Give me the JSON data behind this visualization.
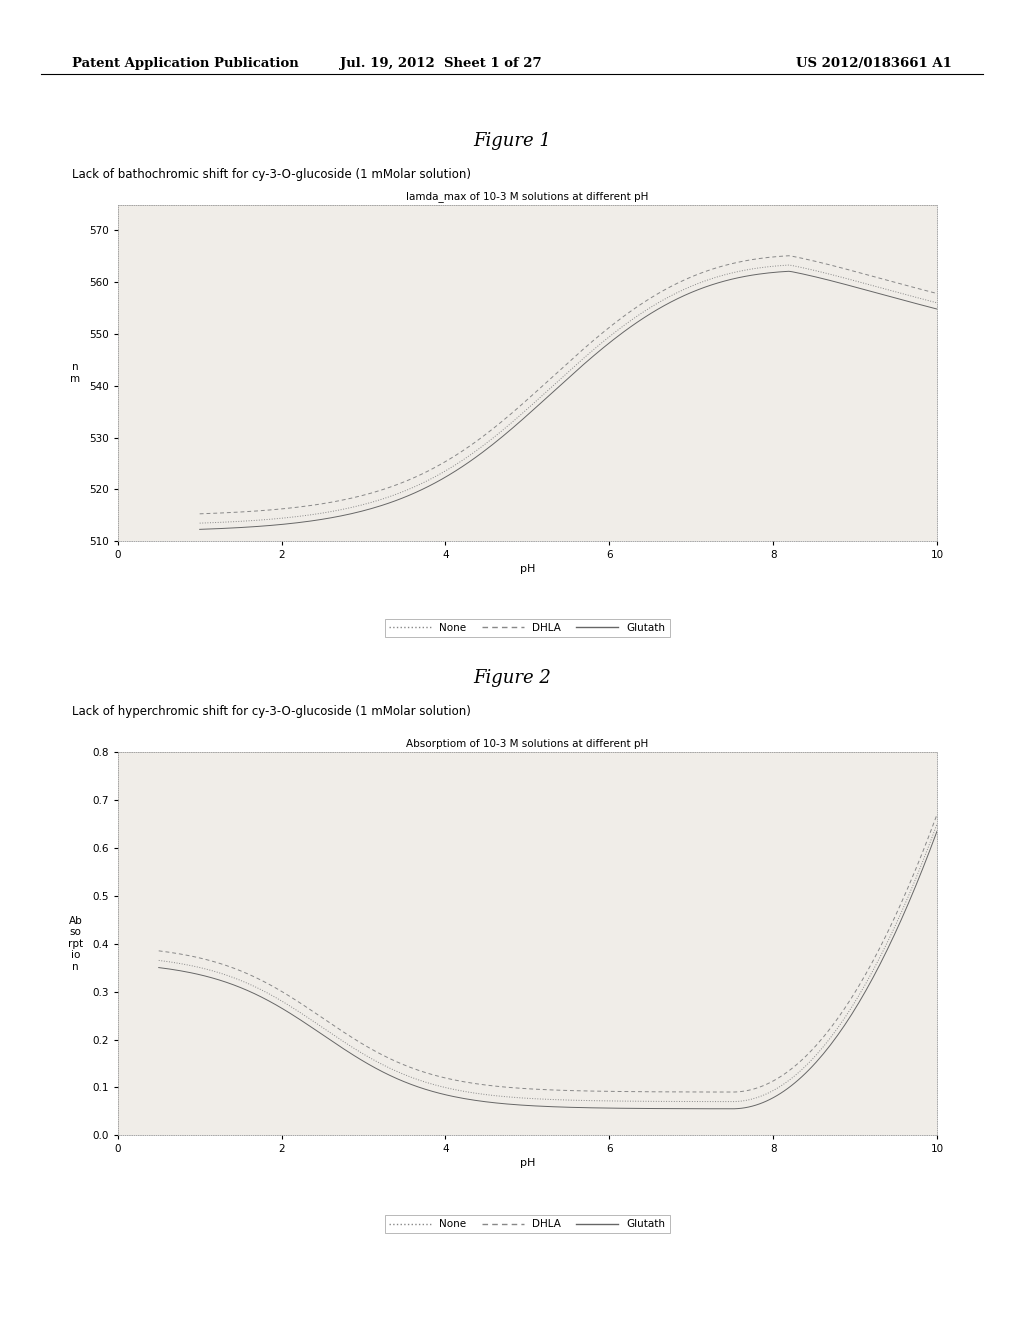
{
  "header_left": "Patent Application Publication",
  "header_mid": "Jul. 19, 2012  Sheet 1 of 27",
  "header_right": "US 2012/0183661 A1",
  "fig1_title": "Figure 1",
  "fig1_subtitle": "Lack of bathochromic shift for cy-3-O-glucoside (1 mMolar solution)",
  "fig1_chart_title": "lamda_max of 10-3 M solutions at different pH",
  "fig1_xlabel": "pH",
  "fig1_ylabel": "n\nm",
  "fig1_xlim": [
    0,
    10
  ],
  "fig1_ylim": [
    510,
    575
  ],
  "fig1_yticks": [
    510,
    520,
    530,
    540,
    550,
    560,
    570
  ],
  "fig1_xticks": [
    0,
    2,
    4,
    6,
    8,
    10
  ],
  "fig2_title": "Figure 2",
  "fig2_subtitle": "Lack of hyperchromic shift for cy-3-O-glucoside (1 mMolar solution)",
  "fig2_chart_title": "Absorptiom of 10-3 M solutions at different pH",
  "fig2_xlabel": "pH",
  "fig2_ylabel": "Ab\nso\nrpt\nio\nn",
  "fig2_xlim": [
    0,
    10
  ],
  "fig2_ylim": [
    0,
    0.8
  ],
  "fig2_yticks": [
    0,
    0.1,
    0.2,
    0.3,
    0.4,
    0.5,
    0.6,
    0.7,
    0.8
  ],
  "fig2_xticks": [
    0,
    2,
    4,
    6,
    8,
    10
  ],
  "legend_labels": [
    "None",
    "DHLA",
    "Glutath"
  ],
  "background_color": "#ffffff",
  "chart_bg": "#f0ede8",
  "line_color": "#888888",
  "border_color": "#999999"
}
